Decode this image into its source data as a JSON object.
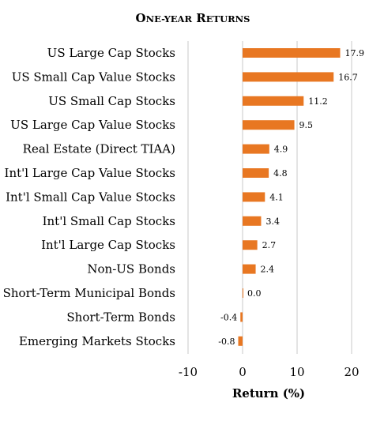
{
  "chart_data": {
    "type": "bar",
    "orientation": "horizontal",
    "title": "One-Year Returns",
    "xlabel": "Return (%)",
    "ylabel": "",
    "categories": [
      "US Large Cap Stocks",
      "US Small Cap Value Stocks",
      "US Small Cap Stocks",
      "US Large Cap Value Stocks",
      "Real Estate (Direct TIAA)",
      "Int'l Large Cap Value Stocks",
      "Int'l Small Cap Value Stocks",
      "Int'l Small Cap Stocks",
      "Int'l Large Cap Stocks",
      "Non-US Bonds",
      "Short-Term Municipal Bonds",
      "Short-Term Bonds",
      "Emerging Markets Stocks"
    ],
    "values": [
      17.9,
      16.7,
      11.2,
      9.5,
      4.9,
      4.8,
      4.1,
      3.4,
      2.7,
      2.4,
      0.0,
      -0.4,
      -0.8
    ],
    "value_labels": [
      "17.9",
      "16.7",
      "11.2",
      "9.5",
      "4.9",
      "4.8",
      "4.1",
      "3.4",
      "2.7",
      "2.4",
      "0.0",
      "-0.4",
      "-0.8"
    ],
    "xlim": [
      -10,
      20
    ],
    "xticks": [
      -10,
      0,
      10,
      20
    ],
    "xtick_labels": [
      "-10",
      "0",
      "10",
      "20"
    ],
    "grid": "vertical",
    "legend": "none",
    "bar_color": "#E87722"
  }
}
